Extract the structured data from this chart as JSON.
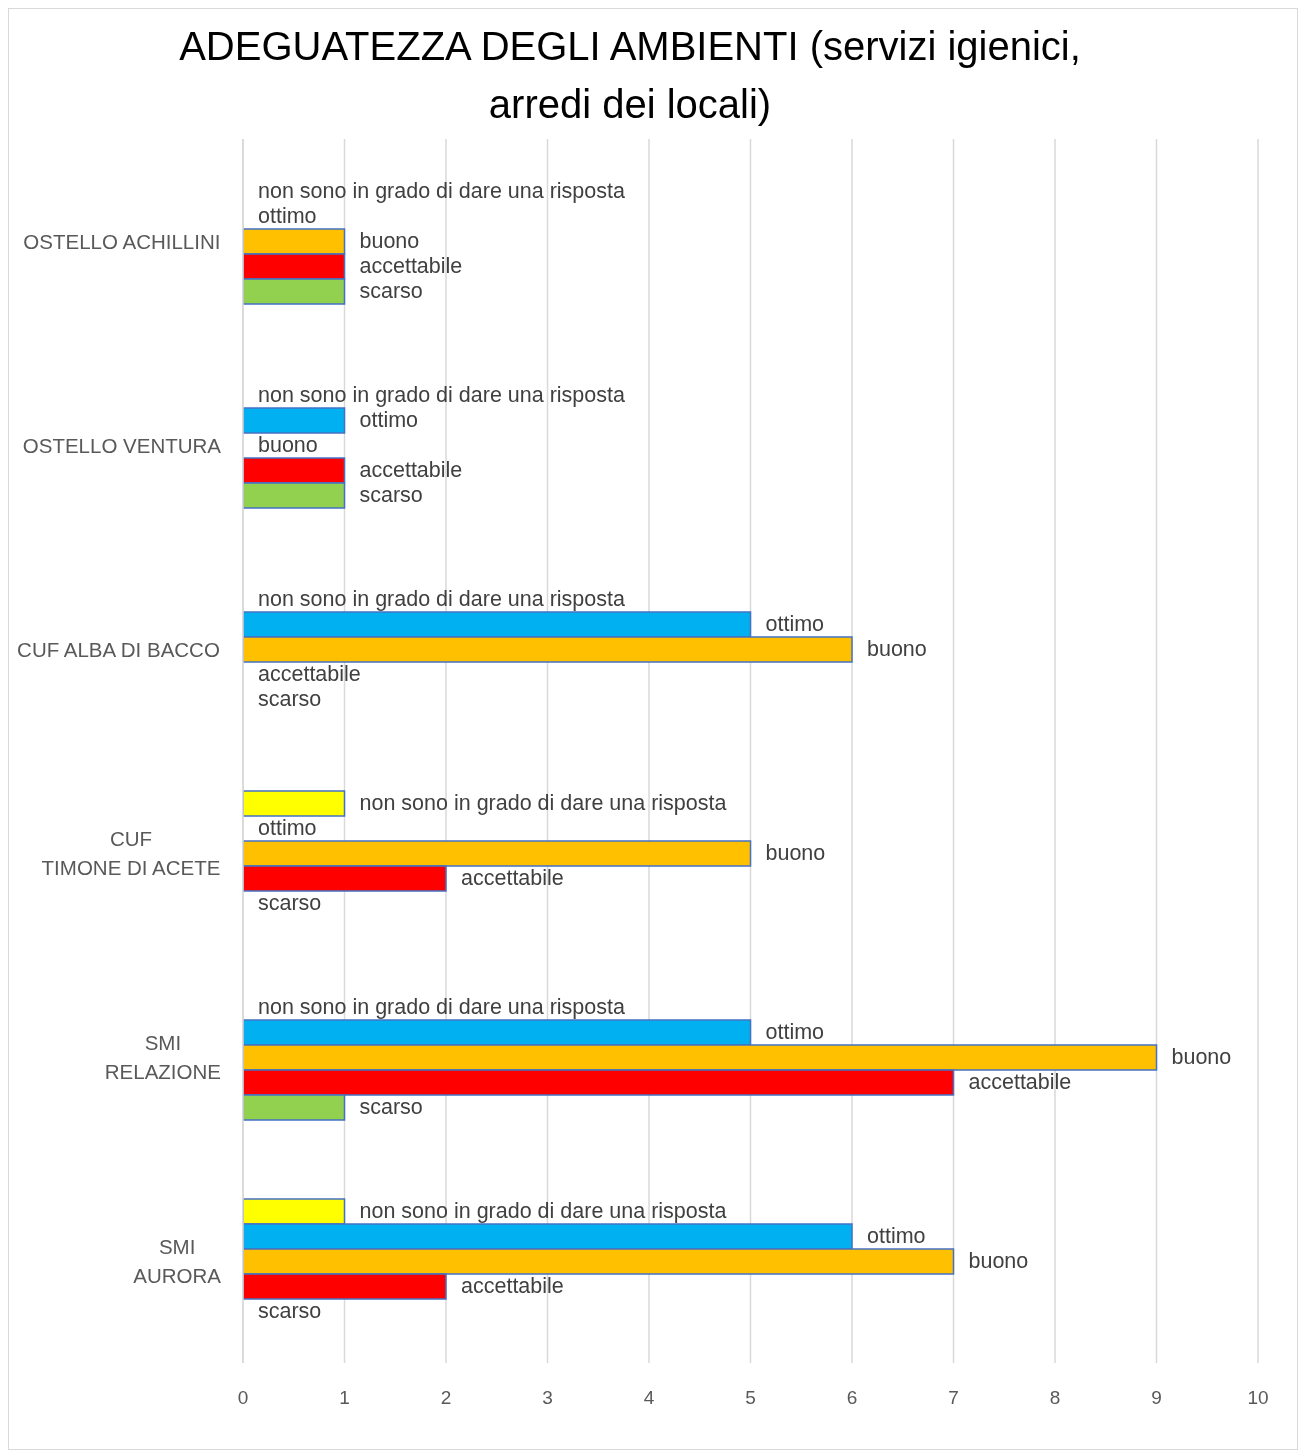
{
  "chart_data": {
    "type": "bar",
    "orientation": "horizontal",
    "title": "ADEGUATEZZA DEGLI AMBIENTI (servizi igienici, arredi dei locali)",
    "categories": [
      "OSTELLO ACHILLINI",
      "OSTELLO VENTURA",
      "CUF ALBA DI BACCO",
      "CUF\nTIMONE DI ACETE",
      "SMI\nRELAZIONE",
      "SMI\nAURORA"
    ],
    "series": [
      {
        "name": "non sono in grado di dare una risposta",
        "color": "#ffff00",
        "values": [
          0,
          0,
          0,
          1,
          0,
          1
        ]
      },
      {
        "name": "ottimo",
        "color": "#00b0f0",
        "values": [
          0,
          1,
          5,
          0,
          5,
          6
        ]
      },
      {
        "name": "buono",
        "color": "#ffc000",
        "values": [
          1,
          0,
          6,
          5,
          9,
          7
        ]
      },
      {
        "name": "accettabile",
        "color": "#ff0000",
        "values": [
          1,
          1,
          0,
          2,
          7,
          2
        ]
      },
      {
        "name": "scarso",
        "color": "#92d050",
        "values": [
          1,
          1,
          0,
          0,
          1,
          0
        ]
      }
    ],
    "xlim": [
      0,
      10
    ],
    "xticks": [
      0,
      1,
      2,
      3,
      4,
      5,
      6,
      7,
      8,
      9,
      10
    ],
    "grid": "x"
  }
}
